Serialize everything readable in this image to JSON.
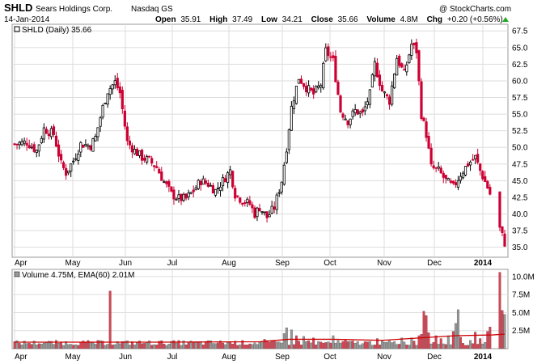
{
  "header": {
    "symbol": "SHLD",
    "company": "Sears Holdings Corp.",
    "exchange": "Nasdaq GS",
    "date": "14-Jan-2014",
    "watermark": "@ StockCharts.com",
    "open_label": "Open",
    "open_value": "35.91",
    "high_label": "High",
    "high_value": "37.49",
    "low_label": "Low",
    "low_value": "34.21",
    "close_label": "Close",
    "close_value": "35.66",
    "volume_label": "Volume",
    "volume_value": "4.8M",
    "chg_label": "Chg",
    "chg_value": "+0.20 (+0.56%)"
  },
  "price_panel": {
    "legend": "SHLD (Daily) 35.66"
  },
  "volume_panel": {
    "legend": "Volume 4.75M, EMA(60) 2.01M"
  },
  "colors": {
    "up": "#000000",
    "down": "#cc0033",
    "vol_up": "#999999",
    "vol_down": "#e04050",
    "ema": "#cc0000",
    "grid": "#dddddd",
    "up_arrow": "#22aa22"
  },
  "chart_data": [
    {
      "type": "candlestick",
      "title": "SHLD (Daily) 35.66",
      "x_labels": [
        "Apr",
        "May",
        "Jun",
        "Jul",
        "Aug",
        "Sep",
        "Oct",
        "Nov",
        "Dec",
        "2014"
      ],
      "y_ticks": [
        "35.0",
        "37.5",
        "40.0",
        "42.5",
        "45.0",
        "47.5",
        "50.0",
        "52.5",
        "55.0",
        "57.5",
        "60.0",
        "62.5",
        "65.0",
        "67.5"
      ],
      "ylim": [
        33.5,
        68.5
      ],
      "grid": true,
      "close_path": [
        [
          0,
          50.5
        ],
        [
          5,
          50.8
        ],
        [
          9,
          49.5
        ],
        [
          12,
          52.8
        ],
        [
          16,
          52.0
        ],
        [
          19,
          47.5
        ],
        [
          21,
          46.2
        ],
        [
          24,
          48.0
        ],
        [
          27,
          50.5
        ],
        [
          31,
          50.3
        ],
        [
          33,
          51.5
        ],
        [
          36,
          56.0
        ],
        [
          38,
          58.5
        ],
        [
          41,
          59.8
        ],
        [
          43,
          58.2
        ],
        [
          46,
          50.8
        ],
        [
          49,
          49.5
        ],
        [
          52,
          48.5
        ],
        [
          55,
          48.0
        ],
        [
          58,
          47.0
        ],
        [
          61,
          44.8
        ],
        [
          64,
          43.0
        ],
        [
          67,
          42.3
        ],
        [
          70,
          42.3
        ],
        [
          73,
          43.5
        ],
        [
          76,
          45.0
        ],
        [
          79,
          44.5
        ],
        [
          82,
          43.5
        ],
        [
          85,
          45.0
        ],
        [
          88,
          46.5
        ],
        [
          90,
          43.0
        ],
        [
          93,
          42.0
        ],
        [
          96,
          41.5
        ],
        [
          98,
          40.0
        ],
        [
          100,
          41.0
        ],
        [
          103,
          39.5
        ],
        [
          106,
          41.0
        ],
        [
          109,
          45.0
        ],
        [
          111,
          50.0
        ],
        [
          113,
          56.0
        ],
        [
          116,
          60.5
        ],
        [
          119,
          59.0
        ],
        [
          122,
          58.0
        ],
        [
          125,
          59.5
        ],
        [
          127,
          64.5
        ],
        [
          130,
          63.0
        ],
        [
          133,
          55.5
        ],
        [
          136,
          54.0
        ],
        [
          139,
          55.5
        ],
        [
          142,
          55.0
        ],
        [
          145,
          58.0
        ],
        [
          147,
          62.5
        ],
        [
          150,
          58.5
        ],
        [
          153,
          57.0
        ],
        [
          156,
          63.5
        ],
        [
          159,
          61.0
        ],
        [
          162,
          65.5
        ],
        [
          164,
          64.5
        ],
        [
          166,
          55.0
        ],
        [
          168,
          52.0
        ],
        [
          170,
          47.0
        ],
        [
          173,
          46.5
        ],
        [
          176,
          45.0
        ],
        [
          179,
          44.0
        ],
        [
          182,
          46.0
        ],
        [
          185,
          47.5
        ],
        [
          188,
          48.5
        ],
        [
          190,
          46.5
        ],
        [
          193,
          44.0
        ],
        [
          194,
          43.0
        ],
        [
          198,
          37.8
        ],
        [
          200,
          35.66
        ]
      ],
      "gap_days": [
        195,
        196,
        197
      ]
    },
    {
      "type": "bar",
      "title": "Volume 4.75M, EMA(60) 2.01M",
      "y_ticks": [
        "2.5M",
        "5.0M",
        "7.5M",
        "10.0M"
      ],
      "unit": "M",
      "ylim": [
        0,
        11
      ],
      "spikes": [
        [
          39,
          8.0,
          "down"
        ],
        [
          102,
          1.3,
          "down"
        ],
        [
          110,
          2.1,
          "up"
        ],
        [
          111,
          2.9,
          "up"
        ],
        [
          113,
          2.6,
          "up"
        ],
        [
          115,
          1.8,
          "down"
        ],
        [
          118,
          1.7,
          "up"
        ],
        [
          120,
          1.1,
          "down"
        ],
        [
          122,
          1.5,
          "down"
        ],
        [
          130,
          1.8,
          "up"
        ],
        [
          135,
          1.2,
          "down"
        ],
        [
          148,
          1.4,
          "down"
        ],
        [
          158,
          1.5,
          "up"
        ],
        [
          162,
          1.5,
          "up"
        ],
        [
          165,
          1.8,
          "down"
        ],
        [
          166,
          2.0,
          "down"
        ],
        [
          167,
          5.2,
          "down"
        ],
        [
          168,
          4.6,
          "down"
        ],
        [
          169,
          2.2,
          "down"
        ],
        [
          172,
          1.8,
          "down"
        ],
        [
          174,
          1.4,
          "down"
        ],
        [
          177,
          1.8,
          "up"
        ],
        [
          179,
          2.4,
          "down"
        ],
        [
          180,
          3.5,
          "up"
        ],
        [
          181,
          5.4,
          "up"
        ],
        [
          182,
          1.6,
          "down"
        ],
        [
          188,
          2.3,
          "down"
        ],
        [
          190,
          1.4,
          "down"
        ],
        [
          193,
          2.4,
          "down"
        ],
        [
          194,
          3.0,
          "down"
        ],
        [
          198,
          10.6,
          "down"
        ],
        [
          199,
          5.3,
          "down"
        ],
        [
          200,
          4.75,
          "up"
        ]
      ],
      "ema_path": [
        [
          0,
          0.9
        ],
        [
          60,
          0.9
        ],
        [
          100,
          0.95
        ],
        [
          112,
          1.3
        ],
        [
          130,
          1.3
        ],
        [
          150,
          1.15
        ],
        [
          166,
          1.5
        ],
        [
          180,
          1.8
        ],
        [
          195,
          1.9
        ],
        [
          200,
          2.01
        ]
      ]
    }
  ]
}
